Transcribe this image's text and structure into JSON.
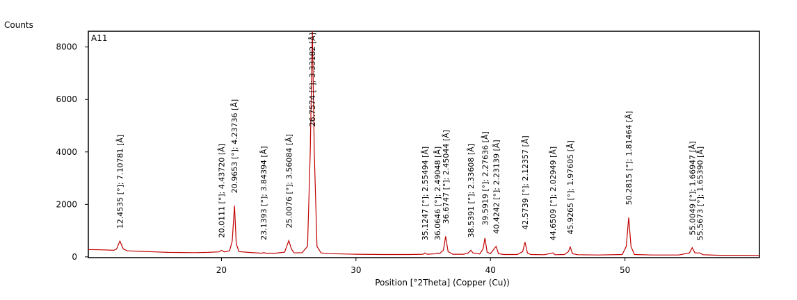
{
  "chart_data": {
    "type": "line",
    "y_label": "Counts",
    "sample": "A11",
    "x_label": "Position [°2Theta] (Copper (Cu))",
    "xlim": [
      10.1,
      60
    ],
    "xticks": [
      20,
      30,
      40,
      50
    ],
    "ylim": [
      -30,
      8600
    ],
    "yticks": [
      0,
      2000,
      4000,
      6000,
      8000
    ],
    "grid": false,
    "series": [
      {
        "color": "#c00000",
        "x": [
          10.1,
          11,
          12,
          12.2,
          12.45,
          12.7,
          13,
          14,
          15,
          16,
          17,
          18,
          19,
          19.8,
          20.01,
          20.2,
          20.6,
          20.8,
          20.97,
          21.1,
          21.3,
          22,
          23,
          23.14,
          23.3,
          24,
          24.7,
          24.85,
          25.01,
          25.2,
          25.4,
          26,
          26.4,
          26.6,
          26.76,
          26.9,
          27.1,
          27.4,
          28,
          29,
          30,
          32,
          34,
          35,
          35.12,
          35.3,
          36,
          36.06,
          36.2,
          36.5,
          36.67,
          36.85,
          37.2,
          38,
          38.35,
          38.54,
          38.7,
          39.2,
          39.45,
          39.59,
          39.75,
          40,
          40.42,
          40.6,
          41,
          42,
          42.4,
          42.57,
          42.75,
          43,
          44,
          44.65,
          44.8,
          45.5,
          45.8,
          45.93,
          46.1,
          46.5,
          48,
          49.8,
          50.1,
          50.28,
          50.45,
          50.7,
          52,
          54,
          54.8,
          55,
          55.2,
          55.57,
          55.8,
          57,
          59,
          60
        ],
        "values": [
          280,
          270,
          250,
          300,
          600,
          300,
          230,
          210,
          190,
          170,
          165,
          160,
          170,
          190,
          250,
          190,
          230,
          600,
          1950,
          500,
          200,
          170,
          140,
          160,
          140,
          140,
          180,
          400,
          620,
          300,
          150,
          160,
          400,
          4000,
          8600,
          4000,
          400,
          150,
          120,
          110,
          100,
          90,
          90,
          100,
          150,
          100,
          120,
          150,
          120,
          250,
          780,
          200,
          100,
          100,
          150,
          250,
          150,
          110,
          300,
          720,
          180,
          120,
          400,
          120,
          90,
          90,
          200,
          560,
          150,
          90,
          80,
          150,
          80,
          90,
          200,
          380,
          120,
          80,
          70,
          90,
          400,
          1500,
          400,
          90,
          70,
          70,
          150,
          350,
          150,
          150,
          80,
          60,
          60,
          50
        ]
      }
    ],
    "peaks": [
      {
        "x": 12.4535,
        "y": 600,
        "label": "12.4535 [°]; 7.10781 [Å]"
      },
      {
        "x": 20.0111,
        "y": 250,
        "label": "20.0111 [°]; 4.43720 [Å]"
      },
      {
        "x": 20.9653,
        "y": 1950,
        "label": "20.9653 [°]; 4.23736 [Å]"
      },
      {
        "x": 23.1393,
        "y": 160,
        "label": "23.1393 [°]; 3.84394 [Å]"
      },
      {
        "x": 25.0076,
        "y": 620,
        "label": "25.0076 [°]; 3.56084 [Å]"
      },
      {
        "x": 26.7574,
        "y": 8600,
        "label": "26.7574 [°]; 3.33182 [Å]"
      },
      {
        "x": 35.1247,
        "y": 150,
        "label": "35.1247 [°]; 2.55494 [Å]"
      },
      {
        "x": 36.0646,
        "y": 150,
        "label": "36.0646 [°]; 2.49048 [Å]"
      },
      {
        "x": 36.6747,
        "y": 780,
        "label": "36.6747 [°]; 2.45044 [Å]"
      },
      {
        "x": 38.5391,
        "y": 250,
        "label": "38.5391 [°]; 2.33608 [Å]"
      },
      {
        "x": 39.5919,
        "y": 720,
        "label": "39.5919 [°]; 2.27636 [Å]"
      },
      {
        "x": 40.4242,
        "y": 400,
        "label": "40.4242 [°]; 2.23139 [Å]"
      },
      {
        "x": 42.5739,
        "y": 560,
        "label": "42.5739 [°]; 2.12357 [Å]"
      },
      {
        "x": 44.6509,
        "y": 150,
        "label": "44.6509 [°]; 2.02949 [Å]"
      },
      {
        "x": 45.9265,
        "y": 380,
        "label": "45.9265 [°]; 1.97605 [Å]"
      },
      {
        "x": 50.2815,
        "y": 1500,
        "label": "50.2815 [°]; 1.81464 [Å]"
      },
      {
        "x": 55.0049,
        "y": 350,
        "label": "55.0049 [°]; 1.66947 [Å]"
      },
      {
        "x": 55.5673,
        "y": 150,
        "label": "55.5673 [°]; 1.65390 [Å]"
      }
    ]
  }
}
